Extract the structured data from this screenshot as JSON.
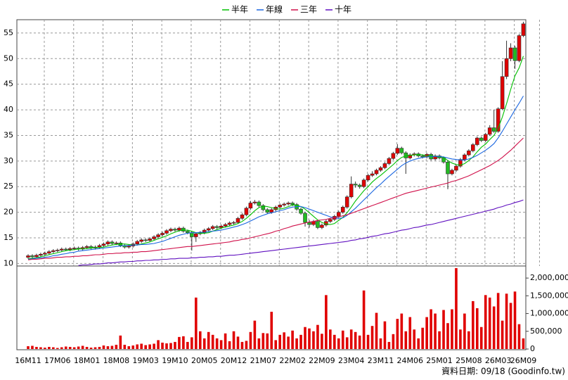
{
  "chart_data": {
    "type": "candlestick",
    "legend": "top",
    "footer": "資料日期: 09/18 (Goodinfo.tw)",
    "grid": true,
    "categories": [
      "16M11",
      null,
      null,
      null,
      null,
      null,
      null,
      "17M06",
      null,
      null,
      null,
      null,
      null,
      null,
      "18M01",
      null,
      null,
      null,
      null,
      null,
      null,
      "18M08",
      null,
      null,
      null,
      null,
      null,
      null,
      "19M03",
      null,
      null,
      null,
      null,
      null,
      null,
      "19M10",
      null,
      null,
      null,
      null,
      null,
      null,
      "20M05",
      null,
      null,
      null,
      null,
      null,
      null,
      "20M12",
      null,
      null,
      null,
      null,
      null,
      null,
      "21M07",
      null,
      null,
      null,
      null,
      null,
      null,
      "22M02",
      null,
      null,
      null,
      null,
      null,
      null,
      "22M09",
      null,
      null,
      null,
      null,
      null,
      null,
      "23M04",
      null,
      null,
      null,
      null,
      null,
      null,
      "23M11",
      null,
      null,
      null,
      null,
      null,
      null,
      "24M06",
      null,
      null,
      null,
      null,
      null,
      null,
      "25M01",
      null,
      null,
      null,
      null,
      null,
      null,
      "25M08",
      null,
      null,
      null,
      null,
      null,
      null,
      "26M03",
      null,
      null,
      null,
      null,
      null,
      "26M09"
    ],
    "ohlc": {
      "up_color": "#e00000",
      "down_color": "#22bb22",
      "open": [
        11.2,
        11.5,
        11.3,
        11.6,
        11.8,
        12.0,
        12.3,
        12.5,
        12.6,
        12.8,
        12.7,
        12.9,
        13.0,
        12.8,
        13.1,
        13.3,
        13.0,
        13.2,
        13.5,
        13.8,
        14.2,
        13.9,
        14.0,
        13.5,
        13.2,
        13.4,
        13.8,
        14.3,
        14.6,
        14.5,
        14.8,
        15.2,
        15.6,
        15.9,
        16.4,
        16.7,
        16.5,
        16.9,
        16.3,
        16.0,
        15.2,
        15.8,
        16.0,
        16.5,
        16.8,
        17.2,
        17.0,
        17.3,
        17.6,
        17.9,
        18.0,
        18.8,
        19.5,
        20.8,
        21.8,
        22.0,
        21.3,
        20.5,
        20.0,
        20.5,
        21.0,
        21.4,
        21.6,
        21.8,
        21.5,
        20.6,
        19.8,
        18.0,
        17.6,
        18.2,
        17.0,
        17.5,
        18.2,
        18.6,
        19.2,
        20.0,
        21.0,
        23.0,
        25.5,
        25.3,
        25.0,
        26.3,
        27.2,
        27.5,
        28.2,
        28.7,
        29.5,
        30.5,
        31.5,
        32.5,
        31.6,
        30.6,
        31.2,
        31.4,
        31.0,
        30.8,
        31.3,
        30.4,
        31.0,
        30.6,
        29.8,
        27.5,
        28.2,
        29.0,
        30.3,
        31.2,
        32.0,
        33.2,
        34.5,
        34.0,
        35.2,
        36.5,
        35.8,
        40.2,
        46.5,
        50.0,
        52.1,
        49.6,
        54.5
      ],
      "high": [
        11.8,
        11.8,
        11.9,
        12.1,
        12.3,
        12.6,
        12.8,
        12.9,
        13.1,
        13.1,
        13.2,
        13.3,
        13.3,
        13.4,
        13.6,
        13.6,
        13.5,
        13.8,
        14.1,
        14.5,
        14.5,
        14.3,
        14.3,
        13.8,
        13.7,
        14.1,
        14.6,
        14.9,
        14.9,
        15.1,
        15.5,
        15.9,
        16.2,
        16.7,
        17.0,
        17.0,
        17.2,
        17.2,
        16.6,
        16.3,
        16.1,
        16.3,
        16.8,
        17.1,
        17.5,
        17.5,
        17.6,
        17.9,
        18.2,
        18.3,
        19.1,
        19.8,
        21.1,
        22.2,
        22.4,
        22.3,
        21.6,
        20.8,
        20.8,
        21.3,
        21.7,
        21.9,
        22.1,
        22.1,
        21.8,
        20.9,
        20.1,
        18.5,
        18.5,
        18.5,
        17.8,
        18.5,
        18.9,
        19.5,
        20.3,
        21.3,
        23.3,
        27.0,
        26.0,
        25.6,
        26.6,
        27.5,
        28.0,
        28.5,
        29.0,
        29.8,
        30.8,
        31.8,
        33.3,
        32.8,
        31.9,
        31.5,
        31.7,
        31.7,
        31.3,
        31.6,
        31.6,
        31.3,
        31.3,
        30.9,
        30.1,
        28.5,
        29.3,
        30.6,
        31.5,
        32.3,
        33.5,
        34.8,
        34.8,
        35.5,
        37.0,
        40.0,
        40.5,
        49.5,
        53.5,
        53.0,
        52.5,
        54.8,
        57.2
      ],
      "low": [
        10.9,
        11.0,
        11.0,
        11.3,
        11.5,
        11.7,
        12.0,
        12.2,
        12.3,
        12.4,
        12.4,
        12.6,
        12.5,
        12.5,
        12.8,
        12.7,
        12.7,
        12.9,
        13.2,
        13.5,
        13.6,
        13.6,
        13.2,
        12.9,
        12.9,
        13.1,
        13.5,
        14.0,
        14.2,
        14.2,
        14.5,
        14.9,
        15.3,
        15.6,
        16.1,
        16.2,
        16.2,
        16.0,
        15.7,
        12.5,
        14.2,
        15.5,
        15.7,
        16.2,
        16.5,
        16.7,
        16.7,
        17.0,
        17.3,
        17.6,
        17.7,
        18.5,
        19.2,
        20.5,
        21.5,
        21.0,
        20.2,
        19.7,
        19.7,
        20.2,
        20.7,
        21.1,
        21.3,
        21.2,
        20.3,
        19.5,
        17.2,
        17.0,
        17.3,
        16.7,
        16.7,
        17.2,
        17.9,
        18.3,
        18.9,
        19.7,
        20.7,
        22.7,
        24.8,
        24.6,
        24.7,
        26.0,
        26.9,
        27.2,
        27.9,
        28.4,
        29.2,
        30.2,
        31.2,
        31.3,
        27.5,
        30.3,
        30.9,
        30.7,
        30.5,
        30.5,
        30.1,
        30.1,
        30.3,
        29.5,
        24.5,
        27.2,
        27.9,
        28.7,
        30.0,
        30.9,
        31.7,
        32.9,
        33.7,
        33.7,
        34.9,
        35.5,
        35.5,
        40.0,
        46.0,
        49.5,
        48.0,
        49.3,
        54.2
      ],
      "close": [
        11.5,
        11.3,
        11.6,
        11.8,
        12.0,
        12.3,
        12.5,
        12.6,
        12.8,
        12.7,
        12.9,
        13.0,
        12.8,
        13.1,
        13.3,
        13.0,
        13.2,
        13.5,
        13.8,
        14.2,
        13.9,
        14.0,
        13.5,
        13.2,
        13.4,
        13.8,
        14.3,
        14.6,
        14.5,
        14.8,
        15.2,
        15.6,
        15.9,
        16.4,
        16.7,
        16.5,
        16.9,
        16.3,
        16.0,
        15.2,
        15.8,
        16.0,
        16.5,
        16.8,
        17.2,
        17.0,
        17.3,
        17.6,
        17.9,
        18.0,
        18.8,
        19.5,
        20.8,
        21.8,
        22.0,
        21.3,
        20.5,
        20.0,
        20.5,
        21.0,
        21.4,
        21.6,
        21.8,
        21.5,
        20.6,
        19.8,
        18.0,
        17.6,
        18.2,
        17.0,
        17.5,
        18.2,
        18.6,
        19.2,
        20.0,
        21.0,
        23.0,
        25.5,
        25.3,
        25.0,
        26.3,
        27.2,
        27.5,
        28.2,
        28.7,
        29.5,
        30.5,
        31.5,
        32.5,
        31.6,
        30.6,
        31.2,
        31.4,
        31.0,
        30.8,
        31.3,
        30.4,
        31.0,
        30.6,
        29.8,
        27.5,
        28.2,
        29.0,
        30.3,
        31.2,
        32.0,
        33.2,
        34.5,
        34.0,
        35.2,
        36.5,
        35.8,
        40.2,
        46.5,
        50.0,
        52.1,
        49.6,
        54.5,
        56.8
      ]
    },
    "series": [
      {
        "name": "半年",
        "color": "#00c000",
        "values": [
          10.9,
          11.0,
          11.1,
          11.3,
          11.5,
          11.7,
          11.9,
          12.1,
          12.3,
          12.5,
          12.6,
          12.7,
          12.8,
          12.9,
          12.9,
          13.0,
          13.1,
          13.1,
          13.2,
          13.4,
          13.6,
          13.7,
          13.8,
          13.8,
          13.7,
          13.6,
          13.6,
          13.8,
          14.0,
          14.2,
          14.5,
          14.8,
          15.1,
          15.4,
          15.8,
          16.1,
          16.4,
          16.5,
          16.5,
          16.3,
          16.0,
          15.9,
          15.9,
          16.0,
          16.3,
          16.6,
          16.9,
          17.1,
          17.3,
          17.5,
          17.8,
          18.2,
          18.8,
          19.5,
          20.3,
          20.9,
          21.2,
          21.1,
          20.9,
          20.7,
          20.6,
          20.8,
          21.1,
          21.4,
          21.4,
          21.1,
          20.6,
          19.9,
          19.2,
          18.5,
          18.0,
          17.7,
          17.6,
          17.8,
          18.4,
          19.0,
          19.9,
          21.0,
          22.2,
          23.2,
          24.2,
          25.0,
          25.9,
          26.6,
          27.2,
          27.9,
          28.6,
          29.3,
          30.1,
          30.7,
          31.0,
          31.1,
          31.2,
          31.3,
          31.2,
          31.0,
          31.0,
          30.9,
          30.8,
          30.7,
          30.1,
          29.6,
          29.3,
          29.2,
          29.5,
          30.1,
          30.8,
          31.8,
          32.7,
          33.3,
          34.2,
          35.0,
          36.4,
          38.6,
          41.2,
          44.0,
          46.6,
          48.2,
          50.5
        ]
      },
      {
        "name": "年線",
        "color": "#1a66e0",
        "values": [
          10.8,
          10.9,
          11.0,
          11.1,
          11.2,
          11.3,
          11.5,
          11.6,
          11.8,
          11.9,
          12.1,
          12.2,
          12.4,
          12.5,
          12.6,
          12.7,
          12.8,
          12.9,
          13.0,
          13.1,
          13.2,
          13.3,
          13.4,
          13.5,
          13.5,
          13.6,
          13.6,
          13.7,
          13.7,
          13.8,
          13.9,
          14.1,
          14.3,
          14.6,
          14.9,
          15.2,
          15.5,
          15.7,
          15.9,
          16.0,
          16.0,
          16.1,
          16.1,
          16.2,
          16.3,
          16.4,
          16.5,
          16.7,
          16.9,
          17.1,
          17.3,
          17.6,
          17.9,
          18.3,
          18.7,
          19.1,
          19.4,
          19.7,
          19.9,
          20.1,
          20.3,
          20.5,
          20.8,
          21.0,
          21.1,
          21.1,
          20.9,
          20.6,
          20.3,
          20.0,
          19.7,
          19.4,
          19.1,
          18.9,
          18.8,
          18.9,
          19.4,
          20.1,
          20.8,
          21.6,
          22.4,
          23.2,
          24.0,
          24.8,
          25.5,
          26.3,
          27.0,
          27.7,
          28.4,
          29.1,
          29.6,
          30.0,
          30.3,
          30.5,
          30.7,
          30.8,
          30.9,
          30.9,
          30.9,
          30.8,
          30.6,
          30.4,
          30.3,
          30.2,
          30.2,
          30.4,
          30.7,
          31.1,
          31.6,
          32.1,
          32.7,
          33.4,
          34.5,
          35.8,
          37.2,
          38.6,
          40.0,
          41.3,
          42.7
        ]
      },
      {
        "name": "三年",
        "color": "#d0104a",
        "values": [
          10.7,
          10.8,
          10.8,
          10.9,
          11.0,
          11.0,
          11.1,
          11.2,
          11.2,
          11.3,
          11.3,
          11.4,
          11.4,
          11.5,
          11.5,
          11.6,
          11.7,
          11.7,
          11.8,
          11.9,
          11.9,
          12.0,
          12.0,
          12.1,
          12.1,
          12.2,
          12.2,
          12.3,
          12.3,
          12.4,
          12.5,
          12.6,
          12.7,
          12.8,
          12.9,
          13.0,
          13.1,
          13.2,
          13.3,
          13.3,
          13.4,
          13.5,
          13.6,
          13.7,
          13.8,
          13.9,
          14.0,
          14.1,
          14.2,
          14.4,
          14.5,
          14.7,
          14.8,
          15.0,
          15.2,
          15.4,
          15.6,
          15.8,
          16.0,
          16.3,
          16.5,
          16.8,
          17.0,
          17.3,
          17.5,
          17.7,
          17.9,
          18.1,
          18.2,
          18.4,
          18.5,
          18.6,
          18.8,
          18.9,
          19.1,
          19.3,
          19.5,
          19.8,
          20.1,
          20.4,
          20.7,
          21.0,
          21.3,
          21.6,
          21.9,
          22.2,
          22.5,
          22.8,
          23.1,
          23.4,
          23.7,
          23.9,
          24.1,
          24.3,
          24.5,
          24.7,
          24.9,
          25.1,
          25.3,
          25.5,
          25.7,
          26.0,
          26.2,
          26.5,
          26.8,
          27.1,
          27.5,
          27.9,
          28.3,
          28.7,
          29.1,
          29.6,
          30.1,
          30.7,
          31.4,
          32.1,
          32.9,
          33.7,
          34.5
        ]
      },
      {
        "name": "十年",
        "color": "#6010c0",
        "values": [
          null,
          null,
          null,
          null,
          null,
          null,
          null,
          null,
          null,
          null,
          null,
          null,
          9.6,
          9.7,
          9.7,
          9.8,
          9.9,
          9.9,
          10.0,
          10.1,
          10.1,
          10.2,
          10.3,
          10.3,
          10.4,
          10.4,
          10.5,
          10.5,
          10.6,
          10.6,
          10.7,
          10.7,
          10.8,
          10.8,
          10.9,
          10.9,
          11.0,
          11.0,
          11.0,
          11.1,
          11.1,
          11.2,
          11.2,
          11.3,
          11.3,
          11.4,
          11.4,
          11.5,
          11.6,
          11.6,
          11.7,
          11.8,
          11.9,
          12.0,
          12.1,
          12.2,
          12.3,
          12.4,
          12.5,
          12.6,
          12.7,
          12.8,
          12.9,
          13.0,
          13.1,
          13.2,
          13.3,
          13.4,
          13.5,
          13.6,
          13.7,
          13.8,
          13.9,
          14.0,
          14.1,
          14.2,
          14.3,
          14.5,
          14.6,
          14.8,
          14.9,
          15.1,
          15.3,
          15.4,
          15.6,
          15.8,
          15.9,
          16.1,
          16.3,
          16.5,
          16.6,
          16.8,
          17.0,
          17.1,
          17.3,
          17.5,
          17.6,
          17.8,
          18.0,
          18.2,
          18.4,
          18.6,
          18.8,
          19.0,
          19.2,
          19.4,
          19.6,
          19.8,
          20.0,
          20.2,
          20.4,
          20.6,
          20.9,
          21.1,
          21.4,
          21.6,
          21.9,
          22.1,
          22.4
        ]
      }
    ],
    "ylim": [
      9.5,
      57.6
    ],
    "yticks": [
      10,
      15,
      20,
      25,
      30,
      35,
      40,
      45,
      50,
      55
    ],
    "volume": {
      "color": "#e00000",
      "axis": "y2",
      "values": [
        80000,
        90000,
        60000,
        50000,
        40000,
        60000,
        50000,
        30000,
        50000,
        70000,
        60000,
        50000,
        70000,
        90000,
        60000,
        40000,
        50000,
        60000,
        100000,
        80000,
        90000,
        120000,
        380000,
        120000,
        80000,
        100000,
        130000,
        150000,
        110000,
        130000,
        150000,
        250000,
        180000,
        160000,
        170000,
        200000,
        340000,
        360000,
        200000,
        330000,
        1450000,
        500000,
        300000,
        480000,
        400000,
        300000,
        250000,
        440000,
        220000,
        500000,
        350000,
        200000,
        230000,
        480000,
        800000,
        300000,
        450000,
        440000,
        1050000,
        250000,
        400000,
        470000,
        350000,
        520000,
        300000,
        400000,
        620000,
        580000,
        500000,
        680000,
        430000,
        1520000,
        550000,
        400000,
        300000,
        520000,
        330000,
        550000,
        480000,
        380000,
        1650000,
        400000,
        650000,
        1020000,
        300000,
        780000,
        200000,
        420000,
        850000,
        1000000,
        500000,
        900000,
        550000,
        300000,
        600000,
        900000,
        1120000,
        1000000,
        500000,
        1100000,
        730000,
        1120000,
        2280000,
        550000,
        1000000,
        500000,
        1350000,
        1150000,
        620000,
        1520000,
        1450000,
        1200000,
        1580000,
        800000,
        1560000,
        1300000,
        1620000,
        700000,
        300000
      ]
    },
    "y2lim": [
      0,
      2300000
    ],
    "y2ticks": [
      0,
      {
        "value": 500000,
        "label": "500,000"
      },
      {
        "value": 1000000,
        "label": "1,000,000"
      },
      {
        "value": 1500000,
        "label": "1,500,000"
      },
      {
        "value": 2000000,
        "label": "2,000,000"
      }
    ]
  }
}
